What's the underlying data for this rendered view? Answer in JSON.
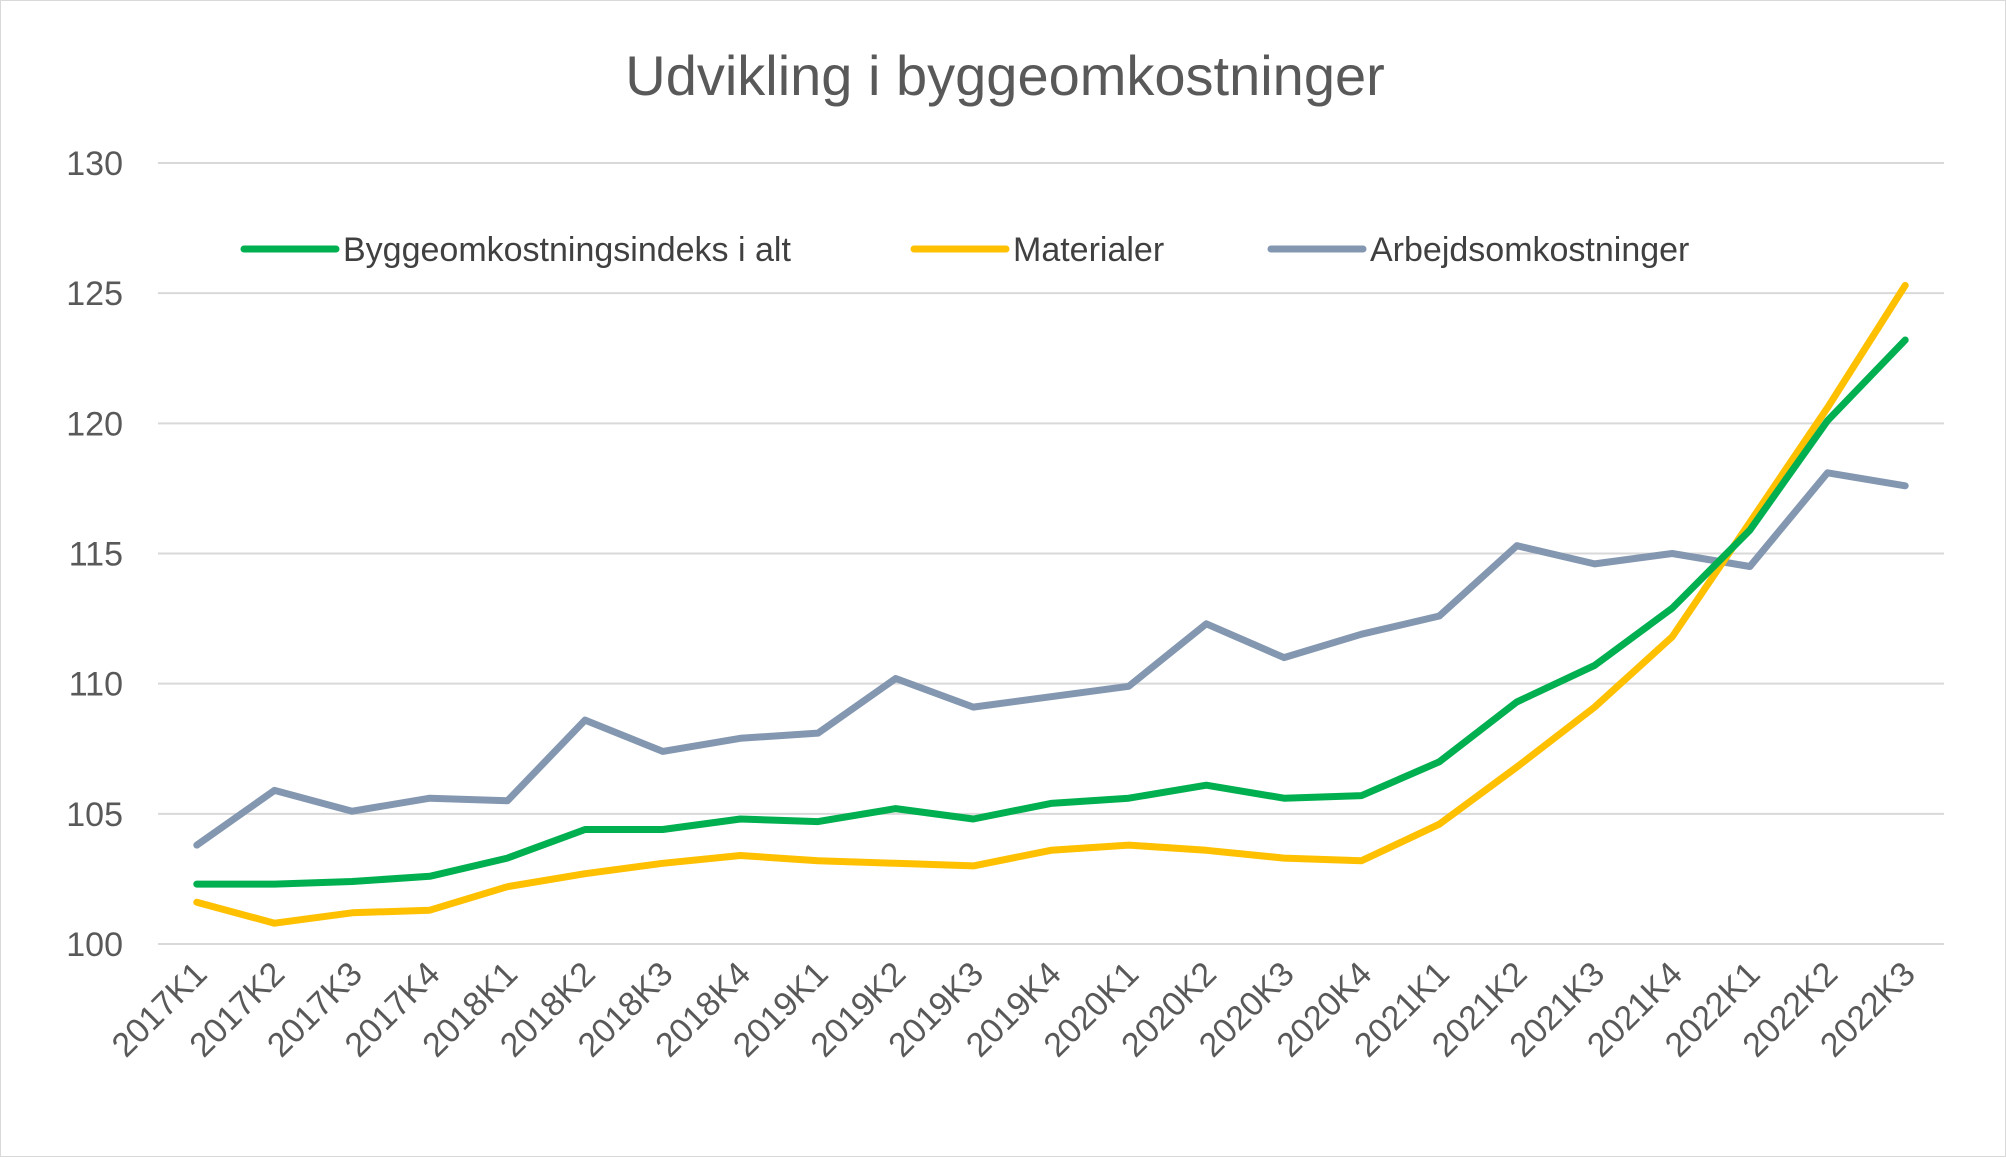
{
  "chart_data": {
    "type": "line",
    "title": "Udvikling i byggeomkostninger",
    "xlabel": "",
    "ylabel": "",
    "ylim": [
      100,
      130
    ],
    "yticks": [
      100,
      105,
      110,
      115,
      120,
      125,
      130
    ],
    "grid": true,
    "legend_position": "top",
    "categories": [
      "2017K1",
      "2017K2",
      "2017K3",
      "2017K4",
      "2018K1",
      "2018K2",
      "2018K3",
      "2018K4",
      "2019K1",
      "2019K2",
      "2019K3",
      "2019K4",
      "2020K1",
      "2020K2",
      "2020K3",
      "2020K4",
      "2021K1",
      "2021K2",
      "2021K3",
      "2021K4",
      "2022K1",
      "2022K2",
      "2022K3"
    ],
    "series": [
      {
        "name": "Byggeomkostningsindeks i alt",
        "color": "#00b050",
        "values": [
          102.3,
          102.3,
          102.4,
          102.6,
          103.3,
          104.4,
          104.4,
          104.8,
          104.7,
          105.2,
          104.8,
          105.4,
          105.6,
          106.1,
          105.6,
          105.7,
          107.0,
          109.3,
          110.7,
          112.9,
          115.9,
          120.1,
          123.2
        ]
      },
      {
        "name": "Materialer",
        "color": "#ffc000",
        "values": [
          101.6,
          100.8,
          101.2,
          101.3,
          102.2,
          102.7,
          103.1,
          103.4,
          103.2,
          103.1,
          103.0,
          103.6,
          103.8,
          103.6,
          103.3,
          103.2,
          104.6,
          106.8,
          109.1,
          111.8,
          116.2,
          120.6,
          125.3
        ]
      },
      {
        "name": "Arbejdsomkostninger",
        "color": "#8497b0",
        "values": [
          103.8,
          105.9,
          105.1,
          105.6,
          105.5,
          108.6,
          107.4,
          107.9,
          108.1,
          110.2,
          109.1,
          109.5,
          109.9,
          112.3,
          111.0,
          111.9,
          112.6,
          115.3,
          114.6,
          115.0,
          114.5,
          118.1,
          117.6
        ]
      }
    ]
  }
}
